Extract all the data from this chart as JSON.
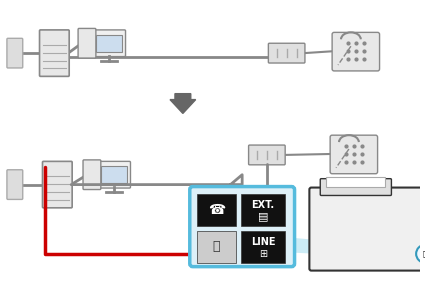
{
  "bg_color": "#ffffff",
  "gray_line_color": "#888888",
  "red_line_color": "#cc0000",
  "light_blue_color": "#aaddee",
  "dark_color": "#222222",
  "wall_color": "#cccccc",
  "arrow_color": "#666666",
  "ext_box_color": "#111111",
  "line_box_color": "#111111",
  "highlight_border": "#55bbdd",
  "printer_fill": "#f0f0f0",
  "printer_line": "#333333"
}
